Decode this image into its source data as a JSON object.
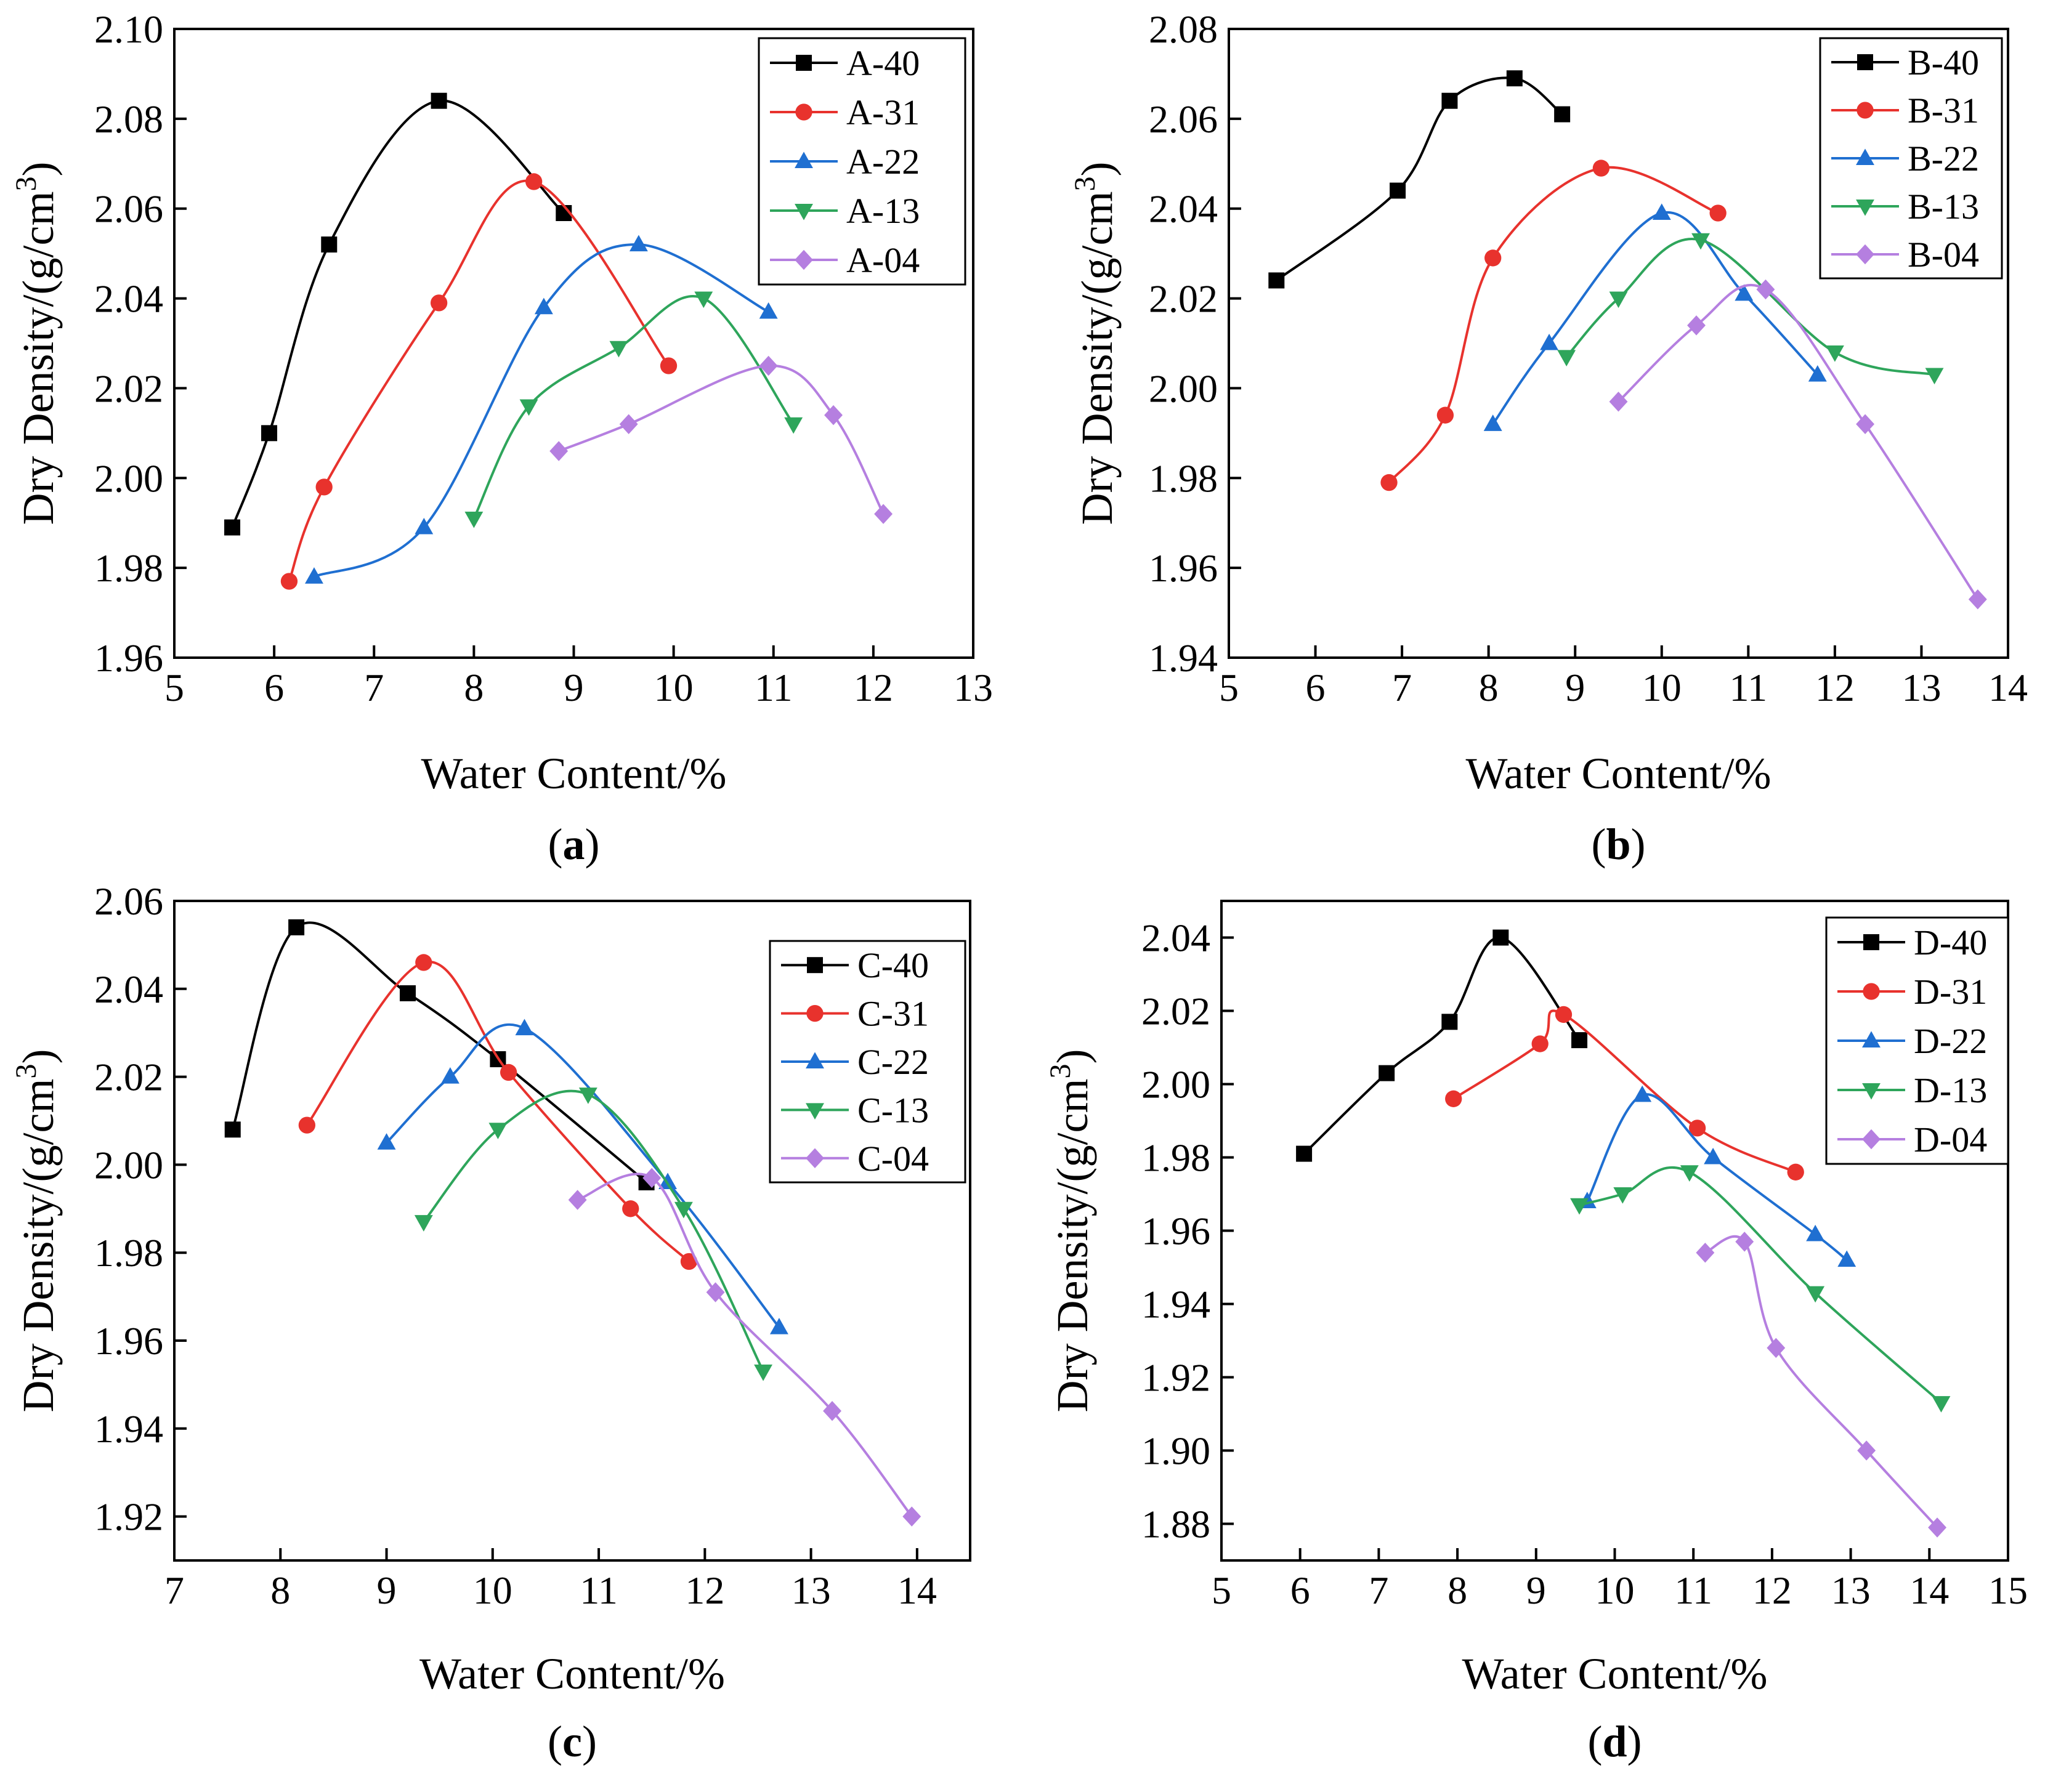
{
  "figure": {
    "series_colors": {
      "40": "#000000",
      "31": "#e8322d",
      "22": "#1f6fd1",
      "13": "#2ea55b",
      "04": "#b57fe0"
    },
    "markers": {
      "40": "square",
      "31": "circle",
      "22": "triangle-up",
      "13": "triangle-down",
      "04": "diamond"
    }
  },
  "chart_data": [
    {
      "type": "line",
      "panel_label": "(a)",
      "xlabel": "Water Content/%",
      "ylabel": "Dry Density/(g/cm",
      "ylabel_sup": "3",
      "ylabel_close": ")",
      "xlim": [
        5,
        13
      ],
      "ylim": [
        1.96,
        2.1
      ],
      "xticks": [
        5,
        6,
        7,
        8,
        9,
        10,
        11,
        12,
        13
      ],
      "yticks": [
        1.96,
        1.98,
        2.0,
        2.02,
        2.04,
        2.06,
        2.08,
        2.1
      ],
      "ydecimals": 2,
      "legend_position": "top-right",
      "series": [
        {
          "name": "A-40",
          "key": "40",
          "x": [
            5.58,
            5.95,
            6.55,
            7.65,
            8.9
          ],
          "y": [
            1.989,
            2.01,
            2.052,
            2.084,
            2.059
          ]
        },
        {
          "name": "A-31",
          "key": "31",
          "x": [
            6.15,
            6.5,
            7.65,
            8.6,
            9.95
          ],
          "y": [
            1.977,
            1.998,
            2.039,
            2.066,
            2.025
          ]
        },
        {
          "name": "A-22",
          "key": "22",
          "x": [
            6.4,
            7.5,
            8.7,
            9.65,
            10.95
          ],
          "y": [
            1.978,
            1.989,
            2.038,
            2.052,
            2.037
          ]
        },
        {
          "name": "A-13",
          "key": "13",
          "x": [
            8.0,
            8.55,
            9.45,
            10.3,
            11.2
          ],
          "y": [
            1.991,
            2.016,
            2.029,
            2.04,
            2.012
          ]
        },
        {
          "name": "A-04",
          "key": "04",
          "x": [
            8.85,
            9.55,
            10.95,
            11.6,
            12.1
          ],
          "y": [
            2.006,
            2.012,
            2.025,
            2.014,
            1.992
          ]
        }
      ]
    },
    {
      "type": "line",
      "panel_label": "(b)",
      "xlabel": "Water Content/%",
      "ylabel": "Dry Density/(g/cm",
      "ylabel_sup": "3",
      "ylabel_close": ")",
      "xlim": [
        5,
        14
      ],
      "ylim": [
        1.94,
        2.08
      ],
      "xticks": [
        5,
        6,
        7,
        8,
        9,
        10,
        11,
        12,
        13,
        14
      ],
      "yticks": [
        1.94,
        1.96,
        1.98,
        2.0,
        2.02,
        2.04,
        2.06,
        2.08
      ],
      "ydecimals": 2,
      "legend_position": "top-right",
      "series": [
        {
          "name": "B-40",
          "key": "40",
          "x": [
            5.55,
            6.95,
            7.55,
            8.3,
            8.85
          ],
          "y": [
            2.024,
            2.044,
            2.064,
            2.069,
            2.061
          ]
        },
        {
          "name": "B-31",
          "key": "31",
          "x": [
            6.85,
            7.5,
            8.05,
            9.3,
            10.65
          ],
          "y": [
            1.979,
            1.994,
            2.029,
            2.049,
            2.039
          ]
        },
        {
          "name": "B-22",
          "key": "22",
          "x": [
            8.05,
            8.7,
            10.0,
            10.95,
            11.8
          ],
          "y": [
            1.992,
            2.01,
            2.039,
            2.021,
            2.003
          ]
        },
        {
          "name": "B-13",
          "key": "13",
          "x": [
            8.9,
            9.5,
            10.45,
            12.0,
            13.15
          ],
          "y": [
            2.007,
            2.02,
            2.033,
            2.008,
            2.003
          ]
        },
        {
          "name": "B-04",
          "key": "04",
          "x": [
            9.5,
            10.4,
            11.2,
            12.35,
            13.65
          ],
          "y": [
            1.997,
            2.014,
            2.022,
            1.992,
            1.953
          ]
        }
      ]
    },
    {
      "type": "line",
      "panel_label": "(c)",
      "xlabel": "Water Content/%",
      "ylabel": "Dry Density/(g/cm",
      "ylabel_sup": "3",
      "ylabel_close": ")",
      "xlim": [
        7,
        14.5
      ],
      "ylim": [
        1.91,
        2.06
      ],
      "xticks": [
        7,
        8,
        9,
        10,
        11,
        12,
        13,
        14
      ],
      "yticks": [
        1.92,
        1.94,
        1.96,
        1.98,
        2.0,
        2.02,
        2.04,
        2.06
      ],
      "ydecimals": 2,
      "legend_position": "top-right",
      "series": [
        {
          "name": "C-40",
          "key": "40",
          "x": [
            7.55,
            8.15,
            9.2,
            10.05,
            11.45
          ],
          "y": [
            2.008,
            2.054,
            2.039,
            2.024,
            1.996
          ]
        },
        {
          "name": "C-31",
          "key": "31",
          "x": [
            8.25,
            9.35,
            10.15,
            11.3,
            11.85
          ],
          "y": [
            2.009,
            2.046,
            2.021,
            1.99,
            1.978
          ]
        },
        {
          "name": "C-22",
          "key": "22",
          "x": [
            9.0,
            9.6,
            10.3,
            11.65,
            12.7
          ],
          "y": [
            2.005,
            2.02,
            2.031,
            1.996,
            1.963
          ]
        },
        {
          "name": "C-13",
          "key": "13",
          "x": [
            9.35,
            10.05,
            10.9,
            11.8,
            12.55
          ],
          "y": [
            1.987,
            2.008,
            2.016,
            1.99,
            1.953
          ]
        },
        {
          "name": "C-04",
          "key": "04",
          "x": [
            10.8,
            11.5,
            12.1,
            13.2,
            13.95
          ],
          "y": [
            1.992,
            1.997,
            1.971,
            1.944,
            1.92
          ]
        }
      ]
    },
    {
      "type": "line",
      "panel_label": "(d)",
      "xlabel": "Water Content/%",
      "ylabel": "Dry Density/(g/cm",
      "ylabel_sup": "3",
      "ylabel_close": ")",
      "xlim": [
        5,
        15
      ],
      "ylim": [
        1.87,
        2.05
      ],
      "xticks": [
        5,
        6,
        7,
        8,
        9,
        10,
        11,
        12,
        13,
        14,
        15
      ],
      "yticks": [
        1.88,
        1.9,
        1.92,
        1.94,
        1.96,
        1.98,
        2.0,
        2.02,
        2.04
      ],
      "ydecimals": 2,
      "legend_position": "top-right",
      "series": [
        {
          "name": "D-40",
          "key": "40",
          "x": [
            6.05,
            7.1,
            7.9,
            8.55,
            9.55
          ],
          "y": [
            1.981,
            2.003,
            2.017,
            2.04,
            2.012
          ]
        },
        {
          "name": "D-31",
          "key": "31",
          "x": [
            7.95,
            9.05,
            9.35,
            11.05,
            12.3
          ],
          "y": [
            1.996,
            2.011,
            2.019,
            1.988,
            1.976
          ]
        },
        {
          "name": "D-22",
          "key": "22",
          "x": [
            9.65,
            10.35,
            11.25,
            12.55,
            12.95
          ],
          "y": [
            1.968,
            1.997,
            1.98,
            1.959,
            1.952
          ]
        },
        {
          "name": "D-13",
          "key": "13",
          "x": [
            9.55,
            10.1,
            10.95,
            12.55,
            14.15
          ],
          "y": [
            1.967,
            1.97,
            1.976,
            1.943,
            1.913
          ]
        },
        {
          "name": "D-04",
          "key": "04",
          "x": [
            11.15,
            11.65,
            12.05,
            13.2,
            14.1
          ],
          "y": [
            1.954,
            1.957,
            1.928,
            1.9,
            1.879
          ]
        }
      ]
    }
  ]
}
